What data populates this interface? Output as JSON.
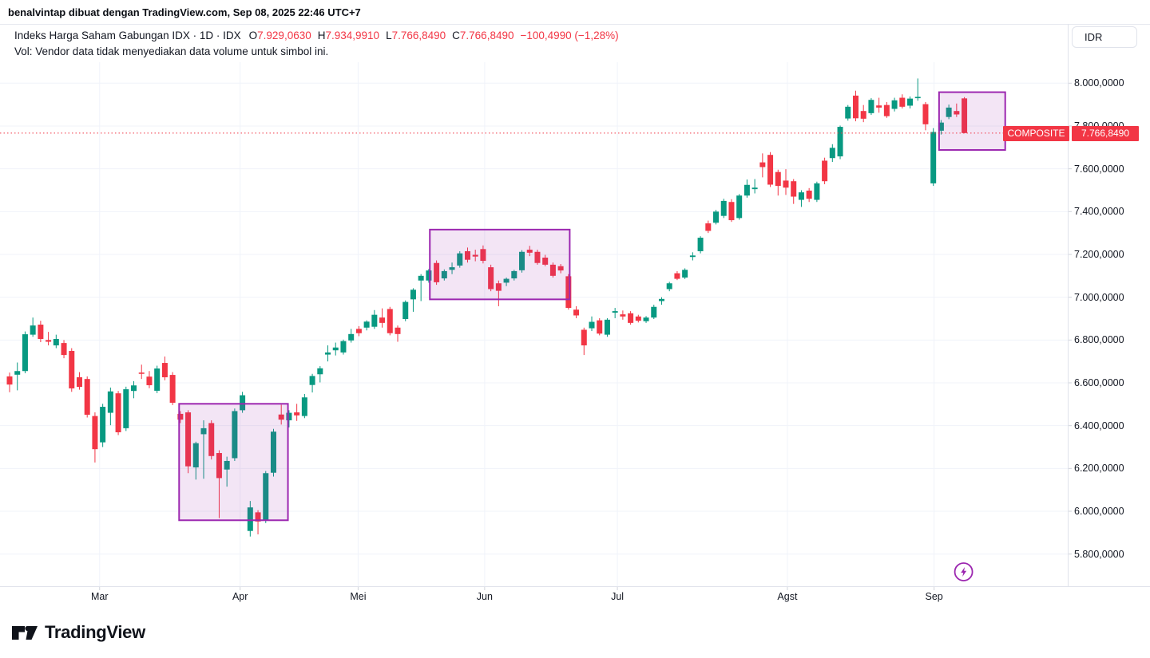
{
  "header": {
    "attribution": "benalvintap dibuat dengan TradingView.com, Sep 08, 2025 22:46 UTC+7",
    "currency": "IDR"
  },
  "legend": {
    "title": "Indeks Harga Saham Gabungan IDX · 1D · IDX",
    "o_label": "O",
    "o": "7.929,0630",
    "h_label": "H",
    "h": "7.934,9910",
    "l_label": "L",
    "l": "7.766,8490",
    "c_label": "C",
    "c": "7.766,8490",
    "change": "−100,4990 (−1,28%)",
    "vol_note": "Vol: Vendor data tidak menyediakan data volume untuk simbol ini."
  },
  "price_tag": {
    "symbol": "COMPOSITE",
    "price": "7.766,8490"
  },
  "footer": {
    "logo_text": "TradingView"
  },
  "colors": {
    "up": "#089981",
    "down": "#f23645",
    "drawing": "#9c27b0",
    "last_line": "#f23645",
    "grid": "#f0f3fa"
  },
  "chart_data": {
    "type": "candlestick",
    "title": "Indeks Harga Saham Gabungan (IDX Composite), 1D",
    "ylabel": "IDR",
    "grid": true,
    "last_price_value": 7766.849,
    "y_axis": [
      {
        "value": 8000,
        "label": "8.000,0000"
      },
      {
        "value": 7800,
        "label": "7.800,0000"
      },
      {
        "value": 7600,
        "label": "7.600,0000"
      },
      {
        "value": 7400,
        "label": "7.400,0000"
      },
      {
        "value": 7200,
        "label": "7.200,0000"
      },
      {
        "value": 7000,
        "label": "7.000,0000"
      },
      {
        "value": 6800,
        "label": "6.800,0000"
      },
      {
        "value": 6600,
        "label": "6.600,0000"
      },
      {
        "value": 6400,
        "label": "6.400,0000"
      },
      {
        "value": 6200,
        "label": "6.200,0000"
      },
      {
        "value": 6000,
        "label": "6.000,0000"
      },
      {
        "value": 5800,
        "label": "5.800,0000"
      }
    ],
    "x_axis": [
      {
        "index": 11.6,
        "label": "Mar"
      },
      {
        "index": 29.7,
        "label": "Apr"
      },
      {
        "index": 44.9,
        "label": "Mei"
      },
      {
        "index": 61.2,
        "label": "Jun"
      },
      {
        "index": 78.3,
        "label": "Jul"
      },
      {
        "index": 100.2,
        "label": "Agst"
      },
      {
        "index": 119.1,
        "label": "Sep"
      }
    ],
    "boxes": [
      {
        "start_index": 22.2,
        "end_index": 35.5,
        "top_price": 6502,
        "bottom_price": 5958
      },
      {
        "start_index": 54.5,
        "end_index": 71.8,
        "top_price": 7316,
        "bottom_price": 6990
      },
      {
        "start_index": 120.1,
        "end_index": 127.9,
        "top_price": 7958,
        "bottom_price": 7688
      }
    ],
    "marker": {
      "index": 122.9,
      "price": 5717,
      "icon": "lightning-icon"
    },
    "candles": [
      [
        6630,
        6648,
        6556,
        6592
      ],
      [
        6638,
        6695,
        6565,
        6655
      ],
      [
        6655,
        6840,
        6645,
        6827
      ],
      [
        6825,
        6905,
        6815,
        6868
      ],
      [
        6872,
        6890,
        6790,
        6805
      ],
      [
        6800,
        6838,
        6775,
        6792
      ],
      [
        6775,
        6825,
        6762,
        6805
      ],
      [
        6786,
        6800,
        6715,
        6730
      ],
      [
        6749,
        6762,
        6558,
        6574
      ],
      [
        6626,
        6650,
        6568,
        6581
      ],
      [
        6618,
        6630,
        6438,
        6451
      ],
      [
        6445,
        6462,
        6228,
        6290
      ],
      [
        6322,
        6502,
        6300,
        6488
      ],
      [
        6460,
        6578,
        6402,
        6560
      ],
      [
        6551,
        6562,
        6356,
        6369
      ],
      [
        6388,
        6582,
        6375,
        6570
      ],
      [
        6562,
        6608,
        6528,
        6588
      ],
      [
        6648,
        6685,
        6618,
        6642
      ],
      [
        6629,
        6655,
        6575,
        6589
      ],
      [
        6563,
        6680,
        6552,
        6667
      ],
      [
        6693,
        6723,
        6612,
        6626
      ],
      [
        6637,
        6650,
        6496,
        6507
      ],
      [
        6455,
        6468,
        6412,
        6428
      ],
      [
        6462,
        6472,
        6178,
        6210
      ],
      [
        6205,
        6325,
        6148,
        6318
      ],
      [
        6360,
        6425,
        6152,
        6388
      ],
      [
        6412,
        6425,
        6242,
        6258
      ],
      [
        6272,
        6285,
        5968,
        6155
      ],
      [
        6195,
        6255,
        6115,
        6235
      ],
      [
        6248,
        6480,
        6235,
        6468
      ],
      [
        6472,
        6558,
        6460,
        6542
      ],
      [
        5908,
        6048,
        5882,
        6018
      ],
      [
        5995,
        6005,
        5892,
        5952
      ],
      [
        5958,
        6188,
        5945,
        6178
      ],
      [
        6180,
        6385,
        6162,
        6372
      ],
      [
        6452,
        6498,
        6405,
        6428
      ],
      [
        6425,
        6472,
        6392,
        6460
      ],
      [
        6462,
        6502,
        6422,
        6448
      ],
      [
        6445,
        6548,
        6435,
        6532
      ],
      [
        6590,
        6642,
        6555,
        6632
      ],
      [
        6640,
        6678,
        6602,
        6668
      ],
      [
        6732,
        6775,
        6700,
        6742
      ],
      [
        6752,
        6788,
        6728,
        6765
      ],
      [
        6742,
        6802,
        6732,
        6795
      ],
      [
        6798,
        6852,
        6788,
        6828
      ],
      [
        6852,
        6865,
        6818,
        6832
      ],
      [
        6858,
        6892,
        6845,
        6886
      ],
      [
        6862,
        6940,
        6852,
        6918
      ],
      [
        6905,
        6948,
        6858,
        6880
      ],
      [
        6945,
        6955,
        6822,
        6832
      ],
      [
        6858,
        6868,
        6792,
        6828
      ],
      [
        6898,
        6985,
        6888,
        6978
      ],
      [
        6990,
        7042,
        6932,
        7035
      ],
      [
        7078,
        7108,
        6982,
        7100
      ],
      [
        7078,
        7132,
        7068,
        7125
      ],
      [
        7160,
        7172,
        7058,
        7070
      ],
      [
        7088,
        7130,
        7078,
        7122
      ],
      [
        7128,
        7162,
        7108,
        7140
      ],
      [
        7148,
        7215,
        7138,
        7205
      ],
      [
        7215,
        7232,
        7162,
        7175
      ],
      [
        7198,
        7222,
        7168,
        7190
      ],
      [
        7225,
        7242,
        7158,
        7170
      ],
      [
        7140,
        7152,
        7028,
        7038
      ],
      [
        7065,
        7078,
        6958,
        7030
      ],
      [
        7068,
        7092,
        7052,
        7086
      ],
      [
        7088,
        7128,
        7078,
        7122
      ],
      [
        7126,
        7220,
        7115,
        7212
      ],
      [
        7222,
        7240,
        7192,
        7208
      ],
      [
        7212,
        7222,
        7152,
        7160
      ],
      [
        7185,
        7198,
        7145,
        7152
      ],
      [
        7152,
        7162,
        7092,
        7100
      ],
      [
        7145,
        7155,
        7112,
        7125
      ],
      [
        7098,
        7108,
        6942,
        6950
      ],
      [
        6942,
        6958,
        6902,
        6915
      ],
      [
        6848,
        6858,
        6730,
        6775
      ],
      [
        6855,
        6910,
        6842,
        6885
      ],
      [
        6892,
        6902,
        6822,
        6830
      ],
      [
        6825,
        6902,
        6815,
        6895
      ],
      [
        6928,
        6950,
        6902,
        6935
      ],
      [
        6920,
        6938,
        6895,
        6910
      ],
      [
        6925,
        6935,
        6872,
        6880
      ],
      [
        6910,
        6918,
        6882,
        6890
      ],
      [
        6888,
        6912,
        6880,
        6905
      ],
      [
        6905,
        6965,
        6898,
        6955
      ],
      [
        6982,
        7000,
        6965,
        6992
      ],
      [
        7038,
        7072,
        7028,
        7065
      ],
      [
        7112,
        7122,
        7080,
        7086
      ],
      [
        7092,
        7135,
        7085,
        7128
      ],
      [
        7188,
        7210,
        7172,
        7195
      ],
      [
        7215,
        7285,
        7205,
        7278
      ],
      [
        7345,
        7358,
        7300,
        7310
      ],
      [
        7348,
        7408,
        7340,
        7400
      ],
      [
        7380,
        7460,
        7370,
        7450
      ],
      [
        7445,
        7458,
        7352,
        7360
      ],
      [
        7370,
        7482,
        7362,
        7475
      ],
      [
        7475,
        7550,
        7465,
        7525
      ],
      [
        7505,
        7552,
        7485,
        7512
      ],
      [
        7630,
        7672,
        7560,
        7608
      ],
      [
        7665,
        7678,
        7515,
        7526
      ],
      [
        7585,
        7596,
        7475,
        7520
      ],
      [
        7545,
        7598,
        7478,
        7512
      ],
      [
        7542,
        7552,
        7436,
        7470
      ],
      [
        7455,
        7500,
        7422,
        7490
      ],
      [
        7498,
        7510,
        7445,
        7460
      ],
      [
        7455,
        7540,
        7445,
        7532
      ],
      [
        7638,
        7652,
        7528,
        7542
      ],
      [
        7650,
        7715,
        7632,
        7698
      ],
      [
        7658,
        7802,
        7645,
        7796
      ],
      [
        7835,
        7898,
        7825,
        7890
      ],
      [
        7942,
        7965,
        7822,
        7836
      ],
      [
        7870,
        7898,
        7818,
        7834
      ],
      [
        7860,
        7930,
        7852,
        7922
      ],
      [
        7896,
        7932,
        7862,
        7886
      ],
      [
        7898,
        7912,
        7838,
        7846
      ],
      [
        7880,
        7932,
        7868,
        7920
      ],
      [
        7932,
        7948,
        7882,
        7890
      ],
      [
        7895,
        7938,
        7882,
        7928
      ],
      [
        7930,
        8022,
        7918,
        7936
      ],
      [
        7902,
        7912,
        7780,
        7808
      ],
      [
        7532,
        7790,
        7520,
        7772
      ],
      [
        7778,
        7828,
        7760,
        7816
      ],
      [
        7842,
        7900,
        7832,
        7886
      ],
      [
        7870,
        7905,
        7842,
        7854
      ],
      [
        7929,
        7935,
        7766,
        7767
      ]
    ]
  }
}
